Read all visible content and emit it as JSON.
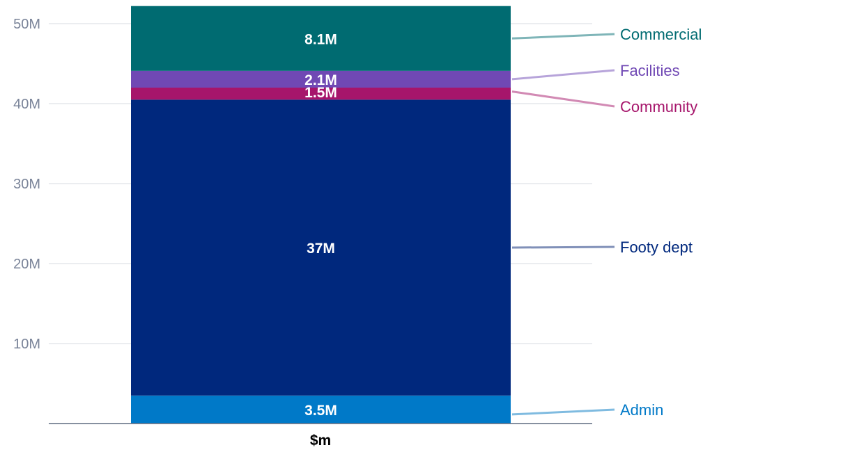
{
  "chart_data": {
    "type": "bar",
    "stacked": true,
    "categories": [
      "$m"
    ],
    "ylim": [
      0,
      52
    ],
    "y_ticks": [
      {
        "value": 10,
        "label": "10M"
      },
      {
        "value": 20,
        "label": "20M"
      },
      {
        "value": 30,
        "label": "30M"
      },
      {
        "value": 40,
        "label": "40M"
      },
      {
        "value": 50,
        "label": "50M"
      }
    ],
    "series": [
      {
        "name": "Admin",
        "value": 3.5,
        "label": "3.5M",
        "color": "#0079c8",
        "legend_color": "#0079c8",
        "leader_color": "#7fbbe0"
      },
      {
        "name": "Footy dept",
        "value": 37,
        "label": "37M",
        "color": "#00287d",
        "legend_color": "#00287d",
        "leader_color": "#8090b8"
      },
      {
        "name": "Community",
        "value": 1.5,
        "label": "1.5M",
        "color": "#a6156b",
        "legend_color": "#a6156b",
        "leader_color": "#d28ab4"
      },
      {
        "name": "Facilities",
        "value": 2.1,
        "label": "2.1M",
        "color": "#7048b4",
        "legend_color": "#7048b4",
        "leader_color": "#b7a4da"
      },
      {
        "name": "Commercial",
        "value": 8.1,
        "label": "8.1M",
        "color": "#006b71",
        "legend_color": "#006b71",
        "leader_color": "#7fb5b8"
      }
    ],
    "title": "",
    "xlabel": "",
    "ylabel": "",
    "grid": true,
    "legend": "right"
  }
}
